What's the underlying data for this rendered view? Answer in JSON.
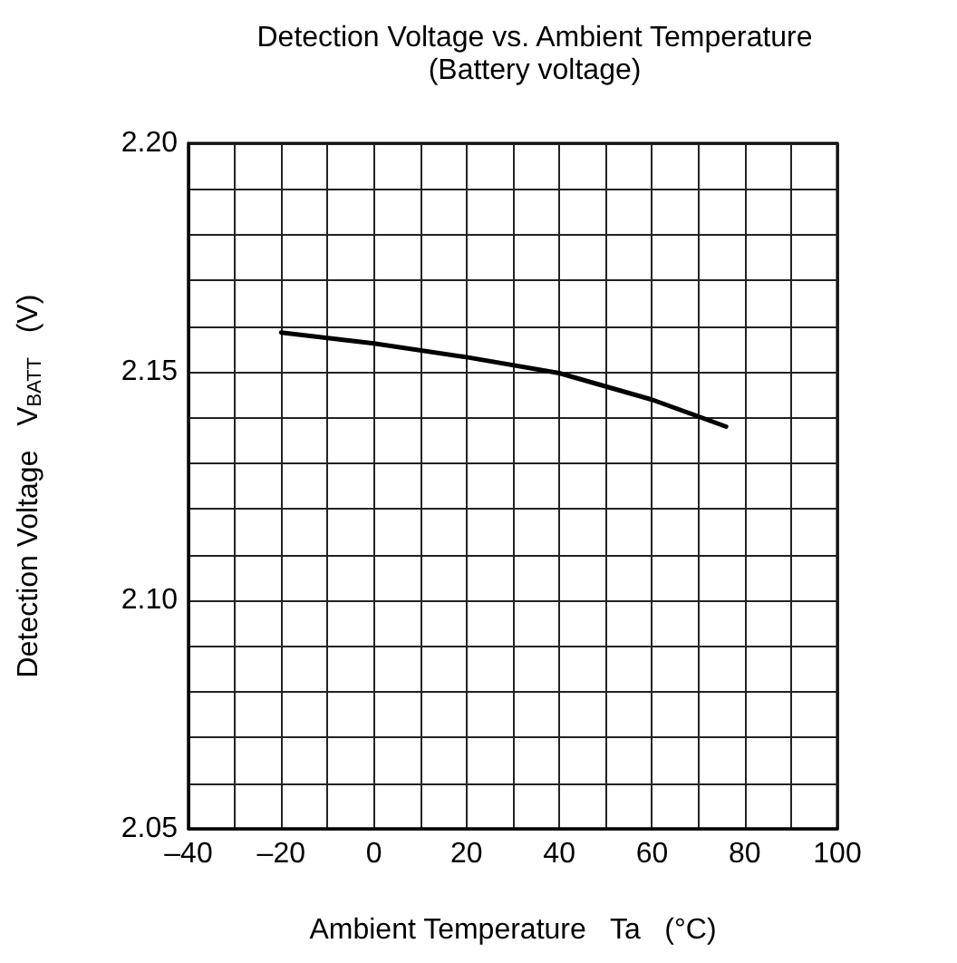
{
  "chart_data": {
    "type": "line",
    "title": "Detection Voltage vs. Ambient Temperature",
    "subtitle": "(Battery voltage)",
    "xlabel": "Ambient Temperature   Ta   (°C)",
    "ylabel": "Detection Voltage   V$_{BATT}$   (V)",
    "x": [
      -20,
      0,
      20,
      40,
      60,
      76
    ],
    "series": [
      {
        "color": "#000000",
        "values": [
          2.1586,
          2.1562,
          2.1532,
          2.1497,
          2.1439,
          2.138
        ]
      }
    ],
    "xlim": [
      -40,
      100
    ],
    "xticks": [
      {
        "value": -40,
        "label": "–40"
      },
      {
        "value": -30,
        "label": null
      },
      {
        "value": -20,
        "label": "–20"
      },
      {
        "value": -10,
        "label": null
      },
      0,
      {
        "value": 10,
        "label": null
      },
      20,
      {
        "value": 30,
        "label": null
      },
      40,
      {
        "value": 50,
        "label": null
      },
      60,
      {
        "value": 70,
        "label": null
      },
      80,
      {
        "value": 90,
        "label": null
      },
      100
    ],
    "ylim": [
      2.05,
      2.2
    ],
    "yticks": [
      {
        "value": 2.05,
        "label": "2.05"
      },
      {
        "value": 2.06,
        "label": null
      },
      {
        "value": 2.07,
        "label": null
      },
      {
        "value": 2.08,
        "label": null
      },
      {
        "value": 2.09,
        "label": null
      },
      {
        "value": 2.1,
        "label": "2.10"
      },
      {
        "value": 2.11,
        "label": null
      },
      {
        "value": 2.12,
        "label": null
      },
      {
        "value": 2.13,
        "label": null
      },
      {
        "value": 2.14,
        "label": null
      },
      {
        "value": 2.15,
        "label": "2.15"
      },
      {
        "value": 2.16,
        "label": null
      },
      {
        "value": 2.17,
        "label": null
      },
      {
        "value": 2.18,
        "label": null
      },
      {
        "value": 2.19,
        "label": null
      },
      {
        "value": 2.2,
        "label": "2.20"
      }
    ],
    "grid": true,
    "marker": "none",
    "line_style": "solid"
  }
}
